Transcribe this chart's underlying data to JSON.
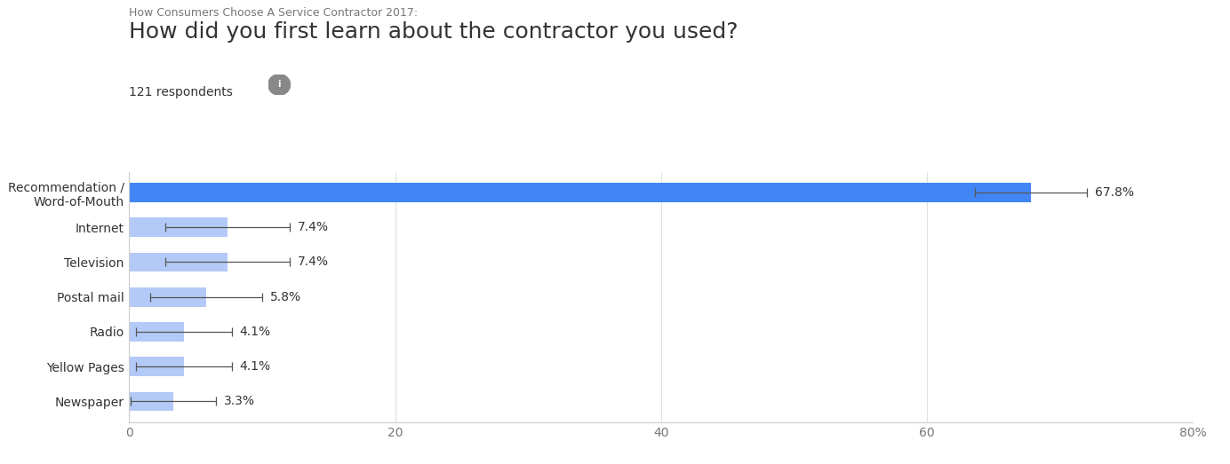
{
  "supertitle": "How Consumers Choose A Service Contractor 2017:",
  "title": "How did you first learn about the contractor you used?",
  "subtitle": "121 respondents",
  "categories": [
    "Recommendation /\nWord-of-Mouth",
    "Internet",
    "Television",
    "Postal mail",
    "Radio",
    "Yellow Pages",
    "Newspaper"
  ],
  "values": [
    67.8,
    7.4,
    7.4,
    5.8,
    4.1,
    4.1,
    3.3
  ],
  "errors": [
    4.2,
    4.7,
    4.7,
    4.2,
    3.6,
    3.6,
    3.2
  ],
  "bar_colors": [
    "#4285f4",
    "#b3c9f7",
    "#b3c9f7",
    "#b3c9f7",
    "#b3c9f7",
    "#b3c9f7",
    "#b3c9f7"
  ],
  "label_texts": [
    "67.8%",
    "7.4%",
    "7.4%",
    "5.8%",
    "4.1%",
    "4.1%",
    "3.3%"
  ],
  "xlim": [
    0,
    80
  ],
  "xticks": [
    0,
    20,
    40,
    60,
    80
  ],
  "xtick_labels": [
    "0",
    "20",
    "40",
    "60",
    "80%"
  ],
  "bg_color": "#ffffff",
  "grid_color": "#e0e0e0",
  "text_color": "#333333",
  "supertitle_color": "#777777",
  "supertitle_fontsize": 9,
  "title_fontsize": 18,
  "subtitle_fontsize": 10,
  "tick_label_fontsize": 10,
  "bar_label_fontsize": 10,
  "category_fontsize": 10
}
